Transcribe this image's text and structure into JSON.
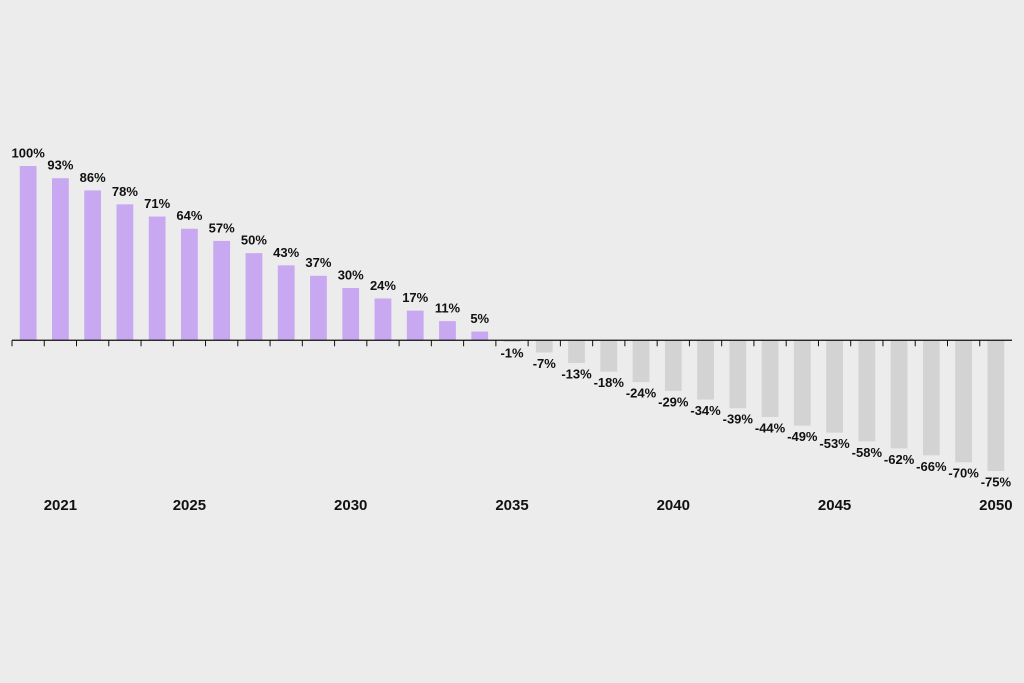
{
  "chart_data": {
    "type": "bar",
    "categories": [
      null,
      "2021",
      null,
      null,
      null,
      "2025",
      null,
      null,
      null,
      null,
      "2030",
      null,
      null,
      null,
      null,
      "2035",
      null,
      null,
      null,
      null,
      "2040",
      null,
      null,
      null,
      null,
      "2045",
      null,
      null,
      null,
      null,
      "2050"
    ],
    "values": [
      100,
      93,
      86,
      78,
      71,
      64,
      57,
      50,
      43,
      37,
      30,
      24,
      17,
      11,
      5,
      -1,
      -7,
      -13,
      -18,
      -24,
      -29,
      -34,
      -39,
      -44,
      -49,
      -53,
      -58,
      -62,
      -66,
      -70,
      -75
    ],
    "value_labels": [
      "100%",
      "93%",
      "86%",
      "78%",
      "71%",
      "64%",
      "57%",
      "50%",
      "43%",
      "37%",
      "30%",
      "24%",
      "17%",
      "11%",
      "5%",
      "-1%",
      "-7%",
      "-13%",
      "-18%",
      "-24%",
      "-29%",
      "-34%",
      "-39%",
      "-44%",
      "-49%",
      "-53%",
      "-58%",
      "-62%",
      "-66%",
      "-70%",
      "-75%"
    ],
    "color": "#c8a8f0",
    "negative_color": "#d3d3d3",
    "ylim": [
      -75,
      100
    ]
  }
}
